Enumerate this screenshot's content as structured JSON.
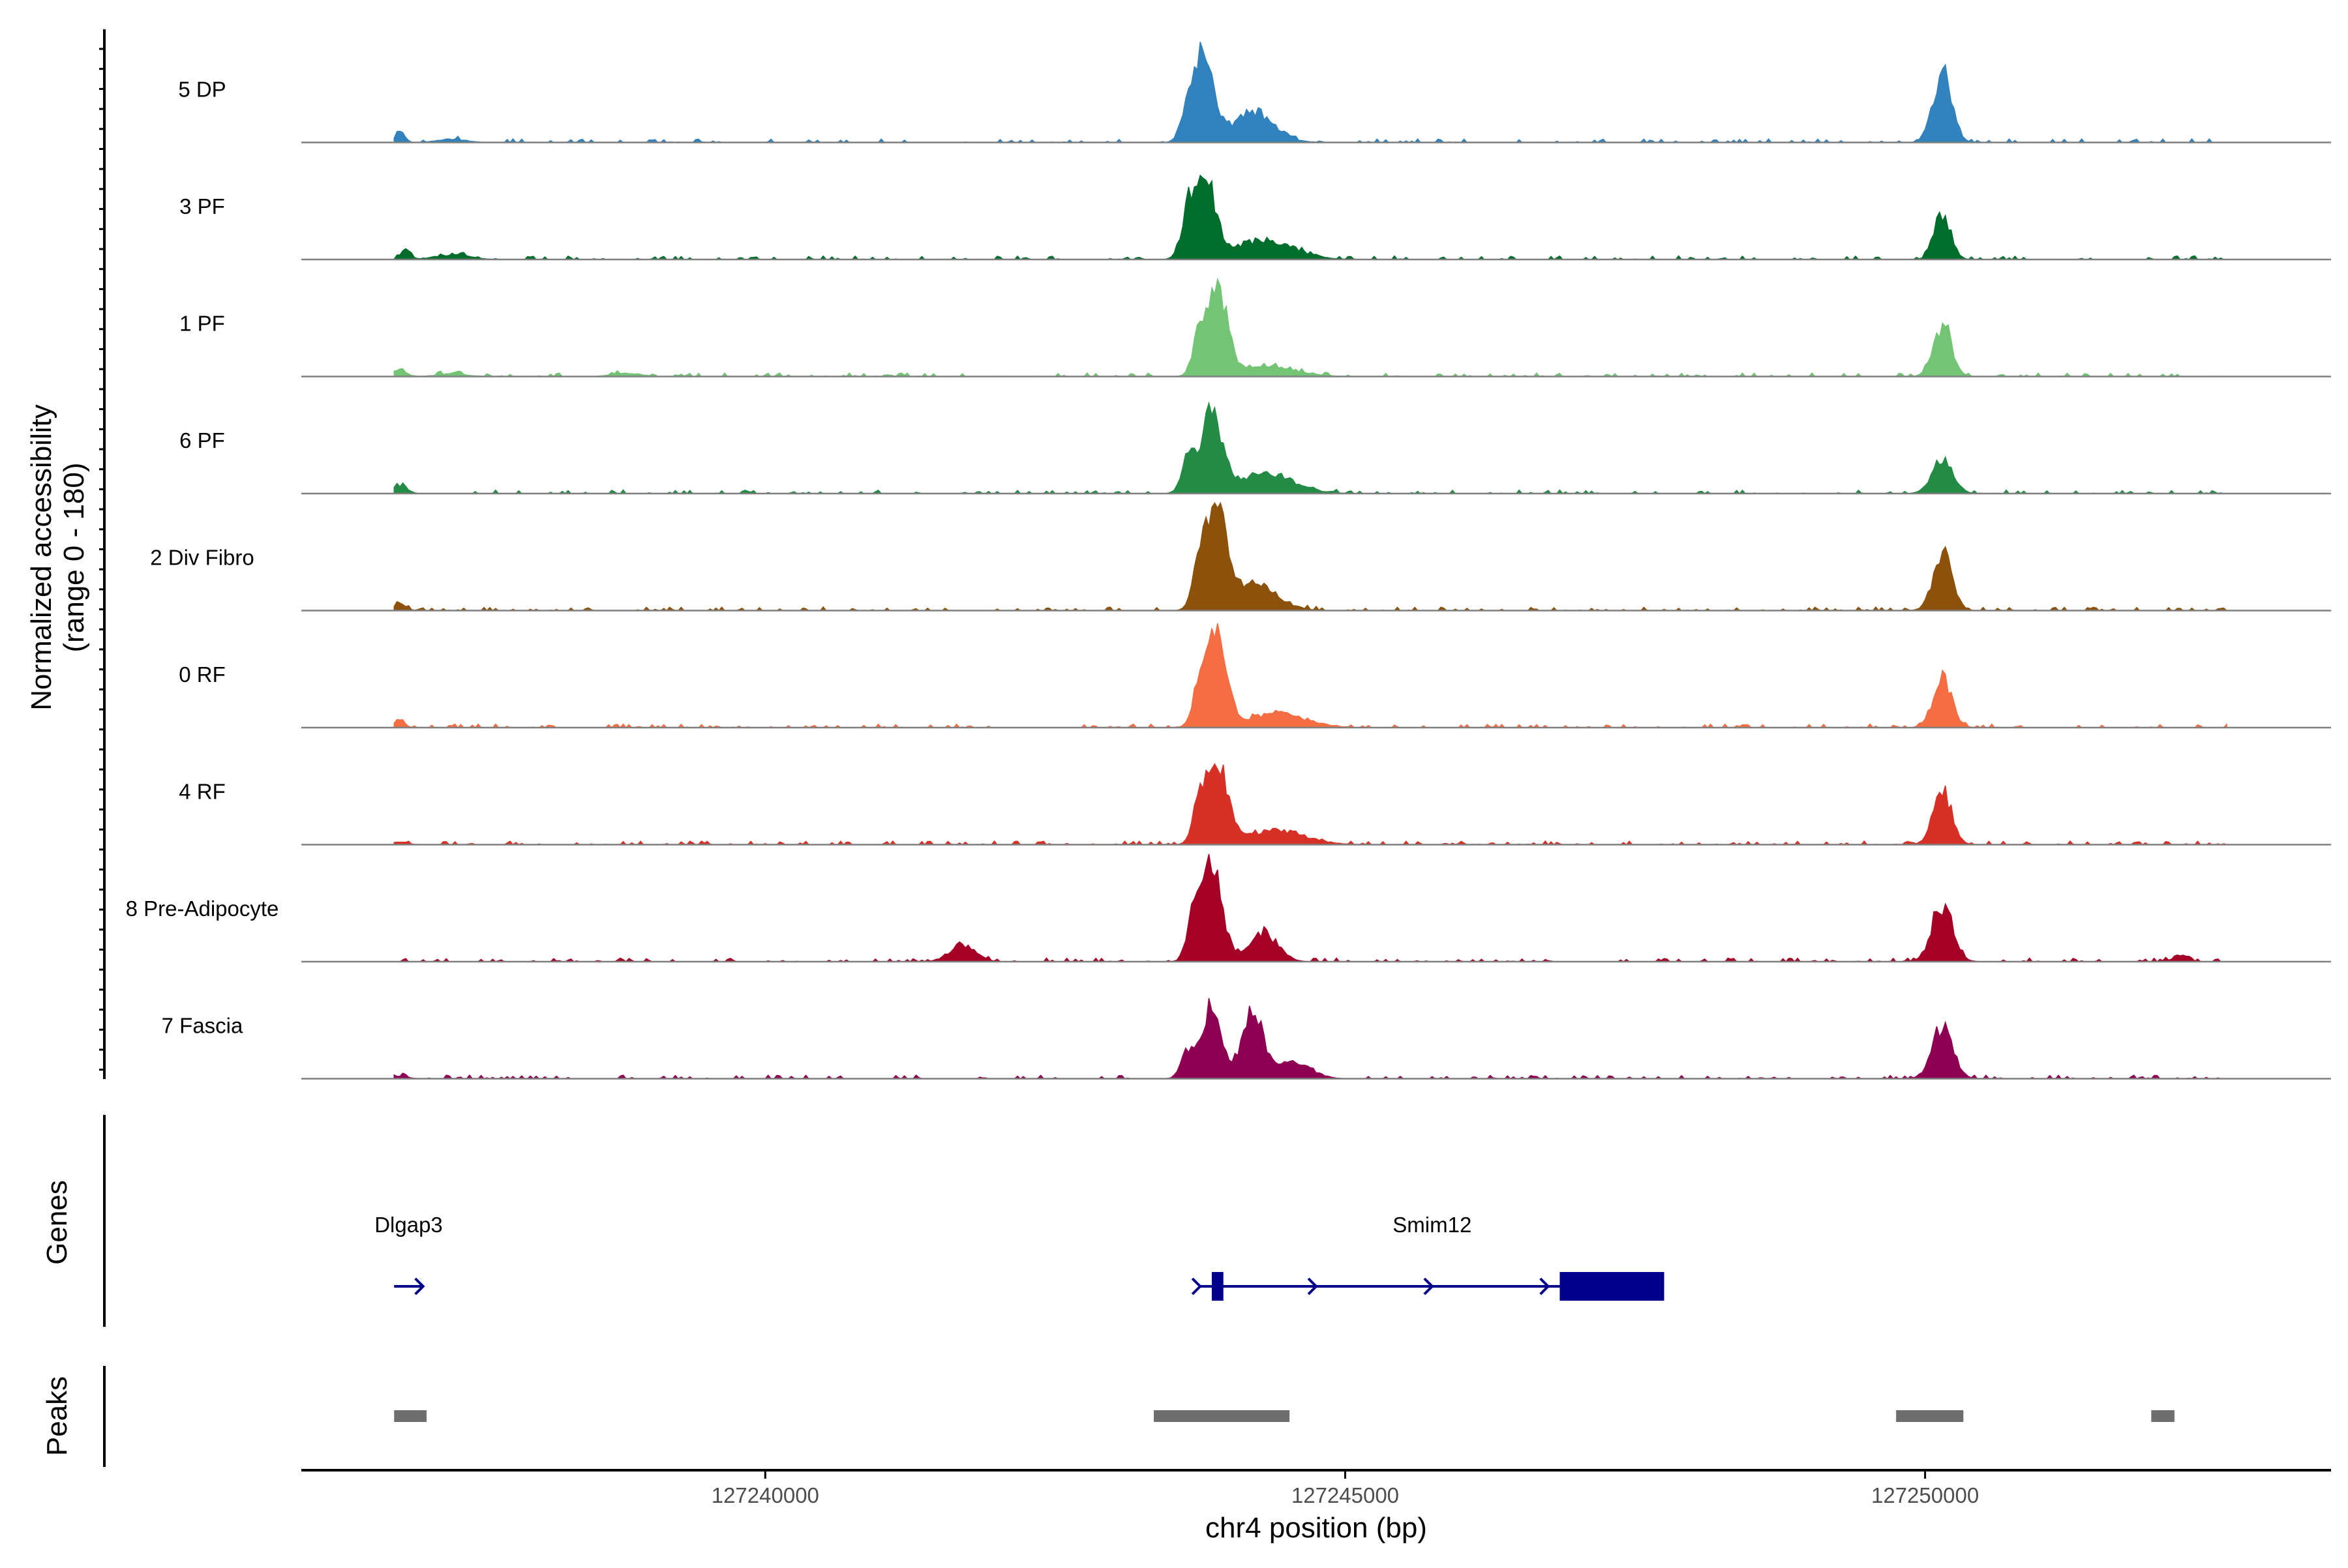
{
  "chart_data": {
    "type": "area",
    "title": "",
    "xlabel": "chr4 position (bp)",
    "ylabel": "Normalized accessibility\n(range 0 - 180)",
    "ylabel_line1": "Normalized accessibility",
    "ylabel_line2": "(range 0 - 180)",
    "y_range": [
      0,
      180
    ],
    "xlim": [
      127236000,
      127253500
    ],
    "x_ticks": [
      127240000,
      127245000,
      127250000
    ],
    "x_tick_labels": [
      "127240000",
      "127245000",
      "127250000"
    ],
    "region_start": 127236800,
    "region_end": 127252600,
    "series": [
      {
        "name": "5 DP",
        "color": "#3182bd",
        "peaks": [
          [
            127236850,
            20,
            40
          ],
          [
            127237300,
            6,
            120
          ],
          [
            127243800,
            170,
            70
          ],
          [
            127243650,
            80,
            60
          ],
          [
            127244200,
            55,
            180
          ],
          [
            127250150,
            120,
            80
          ]
        ]
      },
      {
        "name": "3 PF",
        "color": "#006d2c",
        "peaks": [
          [
            127236900,
            18,
            40
          ],
          [
            127237300,
            8,
            150
          ],
          [
            127243800,
            150,
            80
          ],
          [
            127243650,
            90,
            60
          ],
          [
            127244300,
            35,
            250
          ],
          [
            127250150,
            85,
            70
          ]
        ]
      },
      {
        "name": "1 PF",
        "color": "#74c476",
        "peaks": [
          [
            127236850,
            15,
            50
          ],
          [
            127237300,
            5,
            120
          ],
          [
            127238800,
            6,
            120
          ],
          [
            127243900,
            160,
            80
          ],
          [
            127243750,
            70,
            60
          ],
          [
            127244300,
            20,
            250
          ],
          [
            127250150,
            90,
            80
          ]
        ]
      },
      {
        "name": "6 PF",
        "color": "#238b45",
        "peaks": [
          [
            127236850,
            14,
            60
          ],
          [
            127243850,
            140,
            90
          ],
          [
            127243650,
            60,
            60
          ],
          [
            127244300,
            35,
            250
          ],
          [
            127250150,
            60,
            90
          ]
        ]
      },
      {
        "name": "2 Div Fibro",
        "color": "#8c510a",
        "peaks": [
          [
            127236850,
            12,
            50
          ],
          [
            127243900,
            180,
            80
          ],
          [
            127243750,
            100,
            60
          ],
          [
            127244200,
            50,
            200
          ],
          [
            127250150,
            105,
            80
          ]
        ]
      },
      {
        "name": "0 RF",
        "color": "#f46d43",
        "peaks": [
          [
            127236850,
            15,
            40
          ],
          [
            127243900,
            165,
            80
          ],
          [
            127243750,
            80,
            60
          ],
          [
            127244400,
            25,
            250
          ],
          [
            127250150,
            90,
            80
          ]
        ]
      },
      {
        "name": "4 RF",
        "color": "#d73027",
        "peaks": [
          [
            127236850,
            5,
            60
          ],
          [
            127243900,
            140,
            90
          ],
          [
            127243750,
            70,
            60
          ],
          [
            127244400,
            25,
            250
          ],
          [
            127250150,
            95,
            80
          ]
        ]
      },
      {
        "name": "8 Pre-Adipocyte",
        "color": "#a50026",
        "peaks": [
          [
            127241700,
            30,
            110
          ],
          [
            127243850,
            175,
            90
          ],
          [
            127243700,
            70,
            60
          ],
          [
            127244300,
            50,
            120
          ],
          [
            127250150,
            100,
            90
          ],
          [
            127252200,
            12,
            60
          ]
        ]
      },
      {
        "name": "7 Fascia",
        "color": "#8e0152",
        "peaks": [
          [
            127236850,
            5,
            60
          ],
          [
            127243850,
            130,
            80
          ],
          [
            127244200,
            120,
            90
          ],
          [
            127243650,
            50,
            60
          ],
          [
            127244550,
            30,
            150
          ],
          [
            127250150,
            90,
            90
          ]
        ]
      }
    ],
    "genes_track": {
      "label": "Genes",
      "genes": [
        {
          "name": "Dlgap3",
          "start": 127236800,
          "end": 127237050,
          "strand": "+",
          "exons": []
        },
        {
          "name": "Smim12",
          "start": 127243750,
          "end": 127247750,
          "strand": "+",
          "exons": [
            [
              127243850,
              127243950
            ],
            [
              127246850,
              127247750
            ]
          ]
        }
      ]
    },
    "peaks_track": {
      "label": "Peaks",
      "peaks": [
        [
          127236800,
          127237080
        ],
        [
          127243350,
          127244520
        ],
        [
          127249750,
          127250330
        ],
        [
          127251950,
          127252150
        ]
      ]
    },
    "legend": "none"
  }
}
